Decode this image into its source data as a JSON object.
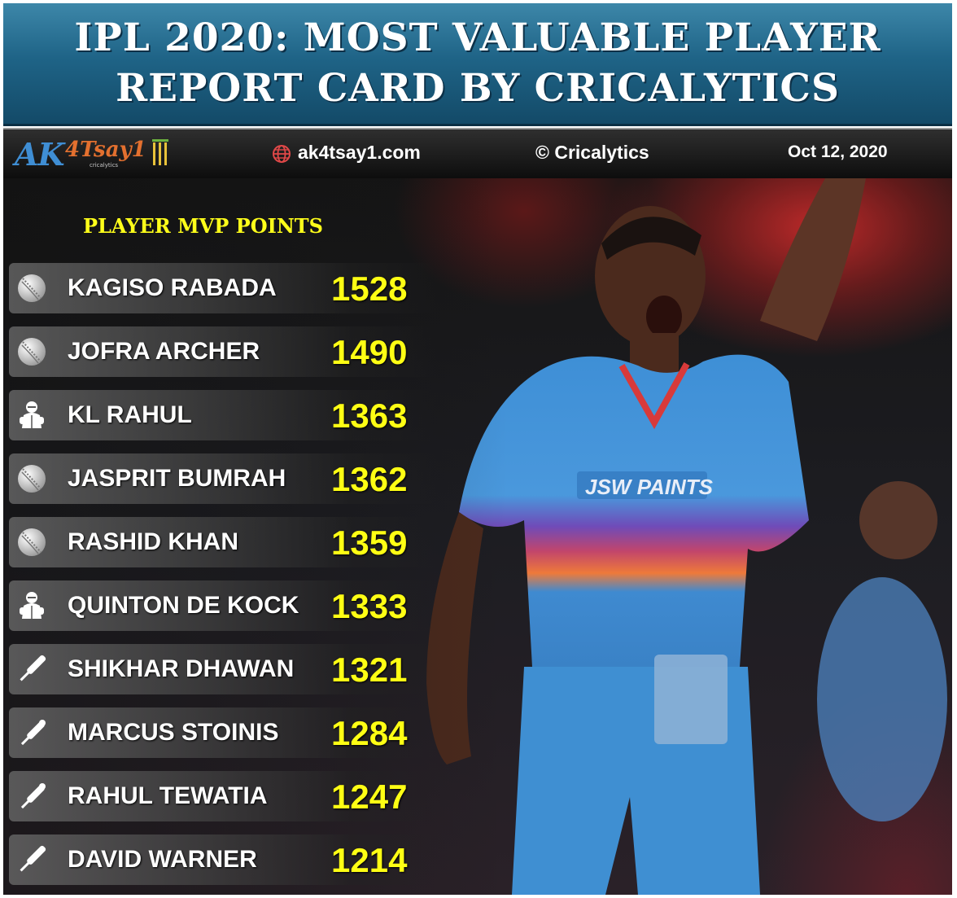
{
  "header": {
    "title_line1": "IPL 2020: MOST VALUABLE PLAYER",
    "title_line2": "REPORT CARD BY CRICALYTICS"
  },
  "info_bar": {
    "logo_text_ak": "AK",
    "logo_text_4tsay": "4Tsay1",
    "logo_tagline": "cricalytics",
    "website": "ak4tsay1.com",
    "copyright": "© Cricalytics",
    "date": "Oct 12, 2020"
  },
  "panel": {
    "heading": "PLAYER MVP POINTS"
  },
  "colors": {
    "banner_blue": "#1f6487",
    "points_yellow": "#ffff14",
    "heading_yellow": "#ffff1a"
  },
  "chart_data": {
    "type": "table",
    "title": "IPL 2020: MOST VALUABLE PLAYER REPORT CARD BY CRICALYTICS",
    "columns": [
      "PLAYER",
      "MVP POINTS"
    ],
    "rows": [
      {
        "icon": "cricket-ball-icon",
        "name": "KAGISO RABADA",
        "points": "1528"
      },
      {
        "icon": "cricket-ball-icon",
        "name": "JOFRA ARCHER",
        "points": "1490"
      },
      {
        "icon": "wicketkeeper-icon",
        "name": "KL RAHUL",
        "points": "1363"
      },
      {
        "icon": "cricket-ball-icon",
        "name": "JASPRIT BUMRAH",
        "points": "1362"
      },
      {
        "icon": "cricket-ball-icon",
        "name": "RASHID KHAN",
        "points": "1359"
      },
      {
        "icon": "wicketkeeper-icon",
        "name": "QUINTON DE KOCK",
        "points": "1333"
      },
      {
        "icon": "cricket-bat-icon",
        "name": "SHIKHAR DHAWAN",
        "points": "1321"
      },
      {
        "icon": "bat-and-ball-icon",
        "name": "MARCUS STOINIS",
        "points": "1284"
      },
      {
        "icon": "bat-and-ball-icon",
        "name": "RAHUL TEWATIA",
        "points": "1247"
      },
      {
        "icon": "cricket-bat-icon",
        "name": "DAVID WARNER",
        "points": "1214"
      }
    ]
  }
}
